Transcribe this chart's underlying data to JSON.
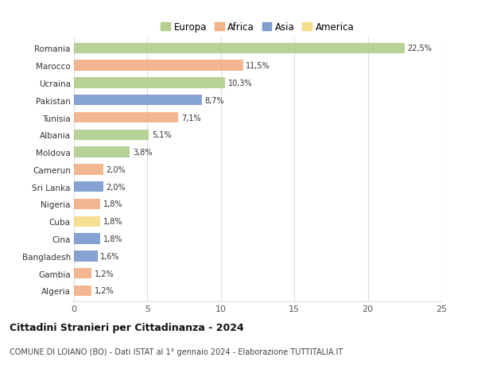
{
  "countries": [
    "Romania",
    "Marocco",
    "Ucraina",
    "Pakistan",
    "Tunisia",
    "Albania",
    "Moldova",
    "Camerun",
    "Sri Lanka",
    "Nigeria",
    "Cuba",
    "Cina",
    "Bangladesh",
    "Gambia",
    "Algeria"
  ],
  "values": [
    22.5,
    11.5,
    10.3,
    8.7,
    7.1,
    5.1,
    3.8,
    2.0,
    2.0,
    1.8,
    1.8,
    1.8,
    1.6,
    1.2,
    1.2
  ],
  "labels": [
    "22,5%",
    "11,5%",
    "10,3%",
    "8,7%",
    "7,1%",
    "5,1%",
    "3,8%",
    "2,0%",
    "2,0%",
    "1,8%",
    "1,8%",
    "1,8%",
    "1,6%",
    "1,2%",
    "1,2%"
  ],
  "colors": [
    "#a8c97f",
    "#f0a878",
    "#a8c97f",
    "#6b8ec9",
    "#f0a878",
    "#a8c97f",
    "#a8c97f",
    "#f0a878",
    "#6b8ec9",
    "#f0a878",
    "#f5d878",
    "#6b8ec9",
    "#6b8ec9",
    "#f0a878",
    "#f0a878"
  ],
  "legend_labels": [
    "Europa",
    "Africa",
    "Asia",
    "America"
  ],
  "legend_colors": [
    "#a8c97f",
    "#f0a878",
    "#6b8ec9",
    "#f5d878"
  ],
  "title": "Cittadini Stranieri per Cittadinanza - 2024",
  "subtitle": "COMUNE DI LOIANO (BO) - Dati ISTAT al 1° gennaio 2024 - Elaborazione TUTTITALIA.IT",
  "xlim": [
    0,
    25
  ],
  "xticks": [
    0,
    5,
    10,
    15,
    20,
    25
  ],
  "bg_color": "#ffffff",
  "grid_color": "#dddddd"
}
